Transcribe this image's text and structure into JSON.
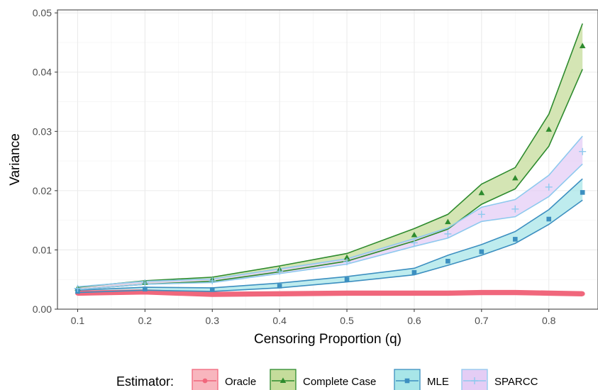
{
  "chart_data": {
    "type": "line",
    "title": "",
    "xlabel": "Censoring Proportion (q)",
    "ylabel": "Variance",
    "xlim": [
      0.07,
      0.873
    ],
    "ylim": [
      0,
      0.0505
    ],
    "x_ticks": [
      0.1,
      0.2,
      0.3,
      0.4,
      0.5,
      0.6,
      0.7,
      0.8
    ],
    "x_tick_labels": [
      "0.1",
      "0.2",
      "0.3",
      "0.4",
      "0.5",
      "0.6",
      "0.7",
      "0.8"
    ],
    "y_ticks": [
      0,
      0.01,
      0.02,
      0.03,
      0.04,
      0.05
    ],
    "y_tick_labels": [
      "0.00",
      "0.01",
      "0.02",
      "0.03",
      "0.04",
      "0.05"
    ],
    "grid": true,
    "legend_title": "Estimator:",
    "legend_position": "bottom",
    "x": [
      0.1,
      0.2,
      0.3,
      0.4,
      0.5,
      0.6,
      0.65,
      0.7,
      0.75,
      0.8,
      0.85
    ],
    "marker_x": [
      0.1,
      0.2,
      0.3,
      0.4,
      0.5,
      0.6,
      0.65,
      0.7,
      0.75,
      0.8,
      0.85
    ],
    "series": [
      {
        "name": "Oracle",
        "color": "#F0677C",
        "fill": "#F8B6BE",
        "marker": "circle",
        "values": [
          0.0027,
          0.0029,
          0.0025,
          0.0026,
          0.0027,
          0.0027,
          0.0027,
          0.0028,
          0.0028,
          0.0027,
          0.0026
        ],
        "lower": [
          0.0025,
          0.0027,
          0.0023,
          0.0024,
          0.0025,
          0.0025,
          0.0025,
          0.0026,
          0.0026,
          0.0025,
          0.0024
        ],
        "upper": [
          0.0029,
          0.0031,
          0.0027,
          0.0028,
          0.0029,
          0.0029,
          0.0029,
          0.003,
          0.003,
          0.0029,
          0.0028
        ]
      },
      {
        "name": "Complete Case",
        "color": "#2E8B2E",
        "fill": "#C5DC9B",
        "marker": "triangle",
        "values": [
          0.0035,
          0.0045,
          0.005,
          0.0067,
          0.0087,
          0.0125,
          0.0147,
          0.0196,
          0.0221,
          0.0303,
          0.0444
        ],
        "lower": [
          0.0033,
          0.0042,
          0.0047,
          0.0063,
          0.0081,
          0.0115,
          0.0135,
          0.0177,
          0.0203,
          0.0275,
          0.0405
        ],
        "upper": [
          0.0037,
          0.0048,
          0.0054,
          0.0073,
          0.0094,
          0.0136,
          0.016,
          0.0211,
          0.0239,
          0.0329,
          0.0482
        ]
      },
      {
        "name": "MLE",
        "color": "#3C8FC0",
        "fill": "#A8E6E8",
        "marker": "square",
        "values": [
          0.003,
          0.0034,
          0.0033,
          0.0039,
          0.005,
          0.0062,
          0.0081,
          0.0097,
          0.0118,
          0.0152,
          0.0197
        ],
        "lower": [
          0.0028,
          0.0032,
          0.003,
          0.0036,
          0.0046,
          0.0058,
          0.0074,
          0.0091,
          0.0111,
          0.0143,
          0.0184
        ],
        "upper": [
          0.0032,
          0.0037,
          0.0036,
          0.0044,
          0.0055,
          0.0069,
          0.0091,
          0.0109,
          0.0131,
          0.0168,
          0.022
        ]
      },
      {
        "name": "SPARCC",
        "color": "#8EC9EE",
        "fill": "#E4CDF5",
        "marker": "plus",
        "values": [
          0.0035,
          0.0044,
          0.0048,
          0.0064,
          0.008,
          0.0112,
          0.0127,
          0.016,
          0.0169,
          0.0206,
          0.0266
        ],
        "lower": [
          0.0033,
          0.0042,
          0.0045,
          0.006,
          0.0076,
          0.0106,
          0.012,
          0.0148,
          0.0156,
          0.019,
          0.0245
        ],
        "upper": [
          0.0038,
          0.0047,
          0.0051,
          0.0068,
          0.0085,
          0.0119,
          0.0137,
          0.0172,
          0.0185,
          0.0226,
          0.0292
        ]
      }
    ]
  }
}
